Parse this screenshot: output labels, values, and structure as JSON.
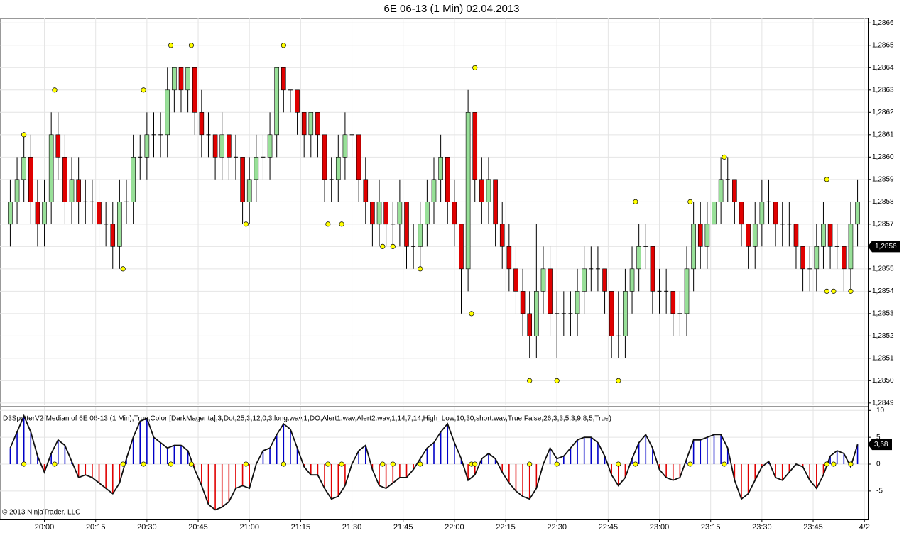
{
  "chart_data": [
    {
      "type": "candlestick",
      "title": "6E 06-13 (1 Min)  02.04.2013",
      "x": [
        "19:50",
        "19:52",
        "19:54",
        "19:56",
        "19:58",
        "20:00",
        "20:02",
        "20:04",
        "20:06",
        "20:08",
        "20:10",
        "20:12",
        "20:14",
        "20:16",
        "20:18",
        "20:20",
        "20:22",
        "20:24",
        "20:26",
        "20:28",
        "20:30",
        "20:32",
        "20:34",
        "20:36",
        "20:38",
        "20:40",
        "20:42",
        "20:44",
        "20:46",
        "20:48",
        "20:50",
        "20:52",
        "20:54",
        "20:56",
        "20:58",
        "21:00",
        "21:02",
        "21:04",
        "21:06",
        "21:08",
        "21:10",
        "21:12",
        "21:14",
        "21:16",
        "21:18",
        "21:20",
        "21:22",
        "21:24",
        "21:26",
        "21:28",
        "21:30",
        "21:32",
        "21:34",
        "21:36",
        "21:38",
        "21:40",
        "21:42",
        "21:44",
        "21:46",
        "21:48",
        "21:50",
        "21:52",
        "21:54",
        "21:56",
        "21:58",
        "22:00",
        "22:02",
        "22:04",
        "22:06",
        "22:08",
        "22:10",
        "22:12",
        "22:14",
        "22:16",
        "22:18",
        "22:20",
        "22:22",
        "22:24",
        "22:26",
        "22:28",
        "22:30",
        "22:32",
        "22:34",
        "22:36",
        "22:38",
        "22:40",
        "22:42",
        "22:44",
        "22:46",
        "22:48",
        "22:50",
        "22:52",
        "22:54",
        "22:56",
        "22:58",
        "23:00",
        "23:02",
        "23:04",
        "23:06",
        "23:08",
        "23:10",
        "23:12",
        "23:14",
        "23:16",
        "23:18",
        "23:20",
        "23:22",
        "23:24",
        "23:26",
        "23:28",
        "23:30",
        "23:32",
        "23:34",
        "23:36",
        "23:38",
        "23:40",
        "23:42",
        "23:44",
        "23:46",
        "23:48",
        "23:50",
        "23:52",
        "23:54",
        "23:56",
        "23:58"
      ],
      "ohlc": [
        [
          1.2857,
          1.2859,
          1.2856,
          1.2858
        ],
        [
          1.2858,
          1.286,
          1.2857,
          1.2859
        ],
        [
          1.2859,
          1.2861,
          1.2858,
          1.286
        ],
        [
          1.286,
          1.2861,
          1.2857,
          1.2858
        ],
        [
          1.2858,
          1.2859,
          1.2856,
          1.2857
        ],
        [
          1.2857,
          1.2859,
          1.2856,
          1.2858
        ],
        [
          1.2858,
          1.2862,
          1.2857,
          1.2861
        ],
        [
          1.2861,
          1.2862,
          1.2859,
          1.286
        ],
        [
          1.286,
          1.2861,
          1.2857,
          1.2858
        ],
        [
          1.2858,
          1.286,
          1.2857,
          1.2859
        ],
        [
          1.2859,
          1.286,
          1.2857,
          1.2858
        ],
        [
          1.2858,
          1.2859,
          1.2857,
          1.2858
        ],
        [
          1.2858,
          1.2859,
          1.2857,
          1.2858
        ],
        [
          1.2858,
          1.2859,
          1.2856,
          1.2857
        ],
        [
          1.2857,
          1.2858,
          1.2856,
          1.2857
        ],
        [
          1.2857,
          1.2858,
          1.2855,
          1.2856
        ],
        [
          1.2856,
          1.2859,
          1.2855,
          1.2858
        ],
        [
          1.2858,
          1.2859,
          1.2857,
          1.2858
        ],
        [
          1.2858,
          1.2861,
          1.2857,
          1.286
        ],
        [
          1.286,
          1.2861,
          1.2859,
          1.286
        ],
        [
          1.286,
          1.2862,
          1.2859,
          1.2861
        ],
        [
          1.2861,
          1.2862,
          1.286,
          1.2861
        ],
        [
          1.2861,
          1.2862,
          1.286,
          1.2861
        ],
        [
          1.2861,
          1.2864,
          1.286,
          1.2863
        ],
        [
          1.2863,
          1.2864,
          1.2862,
          1.2864
        ],
        [
          1.2864,
          1.2864,
          1.2862,
          1.2863
        ],
        [
          1.2863,
          1.2864,
          1.2862,
          1.2864
        ],
        [
          1.2864,
          1.2864,
          1.2861,
          1.2862
        ],
        [
          1.2862,
          1.2863,
          1.286,
          1.2861
        ],
        [
          1.2861,
          1.2862,
          1.286,
          1.2861
        ],
        [
          1.2861,
          1.2861,
          1.2859,
          1.286
        ],
        [
          1.286,
          1.2862,
          1.2859,
          1.2861
        ],
        [
          1.2861,
          1.2861,
          1.2859,
          1.286
        ],
        [
          1.286,
          1.2861,
          1.2859,
          1.286
        ],
        [
          1.286,
          1.286,
          1.2857,
          1.2858
        ],
        [
          1.2858,
          1.286,
          1.2857,
          1.2859
        ],
        [
          1.2859,
          1.2861,
          1.2858,
          1.286
        ],
        [
          1.286,
          1.2861,
          1.2859,
          1.286
        ],
        [
          1.286,
          1.2862,
          1.2859,
          1.2861
        ],
        [
          1.2861,
          1.2864,
          1.286,
          1.2864
        ],
        [
          1.2864,
          1.2864,
          1.2862,
          1.2863
        ],
        [
          1.2863,
          1.2863,
          1.2862,
          1.2863
        ],
        [
          1.2863,
          1.2863,
          1.2861,
          1.2862
        ],
        [
          1.2862,
          1.2862,
          1.286,
          1.2861
        ],
        [
          1.2861,
          1.2862,
          1.286,
          1.2862
        ],
        [
          1.2862,
          1.2862,
          1.286,
          1.2861
        ],
        [
          1.2861,
          1.2861,
          1.2858,
          1.2859
        ],
        [
          1.2859,
          1.286,
          1.2858,
          1.2859
        ],
        [
          1.2859,
          1.2861,
          1.2858,
          1.286
        ],
        [
          1.286,
          1.2862,
          1.2859,
          1.2861
        ],
        [
          1.2861,
          1.2861,
          1.286,
          1.2861
        ],
        [
          1.2861,
          1.2861,
          1.2858,
          1.2859
        ],
        [
          1.2859,
          1.286,
          1.2857,
          1.2858
        ],
        [
          1.2858,
          1.2858,
          1.2856,
          1.2857
        ],
        [
          1.2857,
          1.2859,
          1.2856,
          1.2858
        ],
        [
          1.2858,
          1.2858,
          1.2856,
          1.2857
        ],
        [
          1.2857,
          1.2858,
          1.2856,
          1.2857
        ],
        [
          1.2857,
          1.2859,
          1.2856,
          1.2858
        ],
        [
          1.2858,
          1.2858,
          1.2855,
          1.2856
        ],
        [
          1.2856,
          1.2857,
          1.2855,
          1.2856
        ],
        [
          1.2856,
          1.2858,
          1.2855,
          1.2857
        ],
        [
          1.2857,
          1.2859,
          1.2856,
          1.2858
        ],
        [
          1.2858,
          1.286,
          1.2857,
          1.2859
        ],
        [
          1.2859,
          1.2861,
          1.2858,
          1.286
        ],
        [
          1.286,
          1.286,
          1.2857,
          1.2858
        ],
        [
          1.2858,
          1.2859,
          1.2856,
          1.2857
        ],
        [
          1.2857,
          1.2857,
          1.2853,
          1.2855
        ],
        [
          1.2855,
          1.2863,
          1.2854,
          1.2862
        ],
        [
          1.2862,
          1.2862,
          1.2858,
          1.2859
        ],
        [
          1.2859,
          1.286,
          1.2857,
          1.2858
        ],
        [
          1.2858,
          1.286,
          1.2857,
          1.2859
        ],
        [
          1.2859,
          1.2859,
          1.2856,
          1.2857
        ],
        [
          1.2857,
          1.2858,
          1.2855,
          1.2856
        ],
        [
          1.2856,
          1.2857,
          1.2854,
          1.2855
        ],
        [
          1.2855,
          1.2856,
          1.2853,
          1.2854
        ],
        [
          1.2854,
          1.2855,
          1.2852,
          1.2853
        ],
        [
          1.2853,
          1.2854,
          1.2851,
          1.2852
        ],
        [
          1.2852,
          1.2857,
          1.2851,
          1.2854
        ],
        [
          1.2854,
          1.2856,
          1.2853,
          1.2855
        ],
        [
          1.2855,
          1.2856,
          1.2852,
          1.2853
        ],
        [
          1.2853,
          1.2854,
          1.2851,
          1.2853
        ],
        [
          1.2853,
          1.2854,
          1.2852,
          1.2853
        ],
        [
          1.2853,
          1.2854,
          1.2852,
          1.2853
        ],
        [
          1.2853,
          1.2855,
          1.2852,
          1.2854
        ],
        [
          1.2854,
          1.2856,
          1.2853,
          1.2855
        ],
        [
          1.2855,
          1.2856,
          1.2854,
          1.2855
        ],
        [
          1.2855,
          1.2856,
          1.2854,
          1.2855
        ],
        [
          1.2855,
          1.2855,
          1.2853,
          1.2854
        ],
        [
          1.2854,
          1.2854,
          1.2851,
          1.2852
        ],
        [
          1.2852,
          1.2854,
          1.2851,
          1.2852
        ],
        [
          1.2852,
          1.2855,
          1.2851,
          1.2854
        ],
        [
          1.2854,
          1.2856,
          1.2853,
          1.2855
        ],
        [
          1.2855,
          1.2857,
          1.2854,
          1.2856
        ],
        [
          1.2856,
          1.2857,
          1.2855,
          1.2856
        ],
        [
          1.2856,
          1.2856,
          1.2853,
          1.2854
        ],
        [
          1.2854,
          1.2855,
          1.2853,
          1.2854
        ],
        [
          1.2854,
          1.2855,
          1.2853,
          1.2854
        ],
        [
          1.2854,
          1.2854,
          1.2852,
          1.2853
        ],
        [
          1.2853,
          1.2854,
          1.2852,
          1.2853
        ],
        [
          1.2853,
          1.2856,
          1.2852,
          1.2855
        ],
        [
          1.2855,
          1.2858,
          1.2854,
          1.2857
        ],
        [
          1.2857,
          1.2858,
          1.2855,
          1.2856
        ],
        [
          1.2856,
          1.2858,
          1.2855,
          1.2857
        ],
        [
          1.2857,
          1.2859,
          1.2856,
          1.2858
        ],
        [
          1.2858,
          1.286,
          1.2857,
          1.2859
        ],
        [
          1.2859,
          1.286,
          1.2858,
          1.2859
        ],
        [
          1.2859,
          1.2859,
          1.2857,
          1.2858
        ],
        [
          1.2858,
          1.2858,
          1.2856,
          1.2857
        ],
        [
          1.2857,
          1.2857,
          1.2855,
          1.2856
        ],
        [
          1.2856,
          1.2858,
          1.2855,
          1.2857
        ],
        [
          1.2857,
          1.2859,
          1.2856,
          1.2858
        ],
        [
          1.2858,
          1.2859,
          1.2857,
          1.2858
        ],
        [
          1.2858,
          1.2858,
          1.2856,
          1.2857
        ],
        [
          1.2857,
          1.2858,
          1.2856,
          1.2857
        ],
        [
          1.2857,
          1.2858,
          1.2856,
          1.2857
        ],
        [
          1.2857,
          1.2857,
          1.2855,
          1.2856
        ],
        [
          1.2856,
          1.2856,
          1.2854,
          1.2855
        ],
        [
          1.2855,
          1.2856,
          1.2854,
          1.2855
        ],
        [
          1.2855,
          1.2857,
          1.2854,
          1.2856
        ],
        [
          1.2856,
          1.2858,
          1.2855,
          1.2857
        ],
        [
          1.2857,
          1.2857,
          1.2855,
          1.2856
        ],
        [
          1.2856,
          1.2857,
          1.2855,
          1.2856
        ],
        [
          1.2856,
          1.2856,
          1.2854,
          1.2855
        ],
        [
          1.2855,
          1.2858,
          1.2854,
          1.2857
        ],
        [
          1.2857,
          1.2859,
          1.2856,
          1.2858
        ]
      ],
      "up_color": "#98e098",
      "down_color": "#e00000",
      "xlim": [
        "19:47",
        "00:01"
      ],
      "xticks": [
        "20:00",
        "20:15",
        "20:30",
        "20:45",
        "21:00",
        "21:15",
        "21:30",
        "21:45",
        "22:00",
        "22:15",
        "22:30",
        "22:45",
        "23:00",
        "23:15",
        "23:30",
        "23:45",
        {
          "value": "00:00",
          "label": "4/2"
        }
      ],
      "ylim": [
        1.28489,
        1.28662
      ],
      "yticks": [
        {
          "value": 1.2849,
          "label": "1,2849"
        },
        {
          "value": 1.285,
          "label": "1,2850"
        },
        {
          "value": 1.2851,
          "label": "1,2851"
        },
        {
          "value": 1.2852,
          "label": "1,2852"
        },
        {
          "value": 1.2853,
          "label": "1,2853"
        },
        {
          "value": 1.2854,
          "label": "1,2854"
        },
        {
          "value": 1.2855,
          "label": "1,2855"
        },
        {
          "value": 1.2856,
          "label": "1,2856"
        },
        {
          "value": 1.2857,
          "label": "1,2857"
        },
        {
          "value": 1.2858,
          "label": "1,2858"
        },
        {
          "value": 1.2859,
          "label": "1,2859"
        },
        {
          "value": 1.286,
          "label": "1,2860"
        },
        {
          "value": 1.2861,
          "label": "1,2861"
        },
        {
          "value": 1.2862,
          "label": "1,2862"
        },
        {
          "value": 1.2863,
          "label": "1,2863"
        },
        {
          "value": 1.2864,
          "label": "1,2864"
        },
        {
          "value": 1.2865,
          "label": "1,2865"
        },
        {
          "value": 1.2866,
          "label": "1,2866"
        }
      ],
      "grid": true,
      "last_price": {
        "value": 1.2856,
        "label": "1,2856"
      },
      "marker_color": "#ffff00",
      "markers": [
        {
          "x": "19:54",
          "value": 1.2861
        },
        {
          "x": "20:03",
          "value": 1.2863
        },
        {
          "x": "20:23",
          "value": 1.2855
        },
        {
          "x": "20:29",
          "value": 1.2863
        },
        {
          "x": "20:37",
          "value": 1.2865
        },
        {
          "x": "20:43",
          "value": 1.2865
        },
        {
          "x": "20:59",
          "value": 1.2857
        },
        {
          "x": "21:10",
          "value": 1.2865
        },
        {
          "x": "21:23",
          "value": 1.2857
        },
        {
          "x": "21:27",
          "value": 1.2857
        },
        {
          "x": "21:39",
          "value": 1.2856
        },
        {
          "x": "21:42",
          "value": 1.2856
        },
        {
          "x": "21:50",
          "value": 1.2855
        },
        {
          "x": "22:05",
          "value": 1.2853
        },
        {
          "x": "22:06",
          "value": 1.2864
        },
        {
          "x": "22:22",
          "value": 1.285
        },
        {
          "x": "22:30",
          "value": 1.285
        },
        {
          "x": "22:48",
          "value": 1.285
        },
        {
          "x": "22:53",
          "value": 1.2858
        },
        {
          "x": "23:09",
          "value": 1.2858
        },
        {
          "x": "23:19",
          "value": 1.286
        },
        {
          "x": "23:49",
          "value": 1.2859
        },
        {
          "x": "23:49",
          "value": 1.2854
        },
        {
          "x": "23:51",
          "value": 1.2854
        },
        {
          "x": "23:56",
          "value": 1.2854
        }
      ]
    },
    {
      "type": "oscillator",
      "title": "D3SpotterV2(Median of 6E 06-13 (1 Min),True,Color [DarkMagenta],3,Dot,25,3,12,0,3,long.wav,1,DO,Alert1.wav,Alert2.wav,1,14,7,14,High_Low,10,30,short.wav,True,False,26,3,3,5,3,9,8,5,True)",
      "footnote": "© 2013 NinjaTrader, LLC",
      "values": [
        3,
        6,
        9,
        6,
        1.5,
        -1.5,
        2,
        4.5,
        3.5,
        0.5,
        -2.5,
        -2,
        -2.5,
        -3.5,
        -4.5,
        -5.5,
        -3.5,
        1,
        5,
        8,
        8.5,
        5,
        4,
        3,
        3.5,
        3.5,
        2.5,
        -1,
        -4,
        -7.5,
        -8.5,
        -8,
        -7,
        -4.5,
        -4,
        -4.5,
        0,
        2.5,
        3,
        5.5,
        7.5,
        6.5,
        3,
        -0.5,
        -2,
        -2,
        -4.5,
        -6.5,
        -6,
        -4,
        0,
        2.5,
        3.5,
        -1,
        -4,
        -4.5,
        -3.5,
        -2.5,
        -2.5,
        -1,
        1,
        3,
        4,
        6,
        7.5,
        4,
        1,
        -3,
        -2,
        1,
        2,
        1,
        -1.5,
        -3.5,
        -5,
        -6,
        -6.5,
        -4.5,
        0,
        3,
        1,
        1.5,
        3,
        4.5,
        5,
        5,
        4,
        1.5,
        -2,
        -4,
        -2.5,
        1,
        4,
        5.5,
        3,
        -1,
        -2.5,
        -3,
        -2.5,
        1,
        4.5,
        4.5,
        5,
        5.5,
        5.5,
        3,
        -3,
        -6.5,
        -5.5,
        -3,
        -0.5,
        0.5,
        -2.5,
        -3,
        -1.5,
        0,
        -0.5,
        -3,
        -4.5,
        -2,
        1.5,
        2.5,
        2,
        -0.5,
        3.68
      ],
      "last_label": "3,68",
      "pos_color": "#0000c8",
      "neg_color": "#e00000",
      "line_color": "#101010",
      "ylim": [
        -10.3,
        10.7
      ],
      "yticks": [
        10,
        5,
        0,
        -5
      ],
      "grid": true
    }
  ]
}
